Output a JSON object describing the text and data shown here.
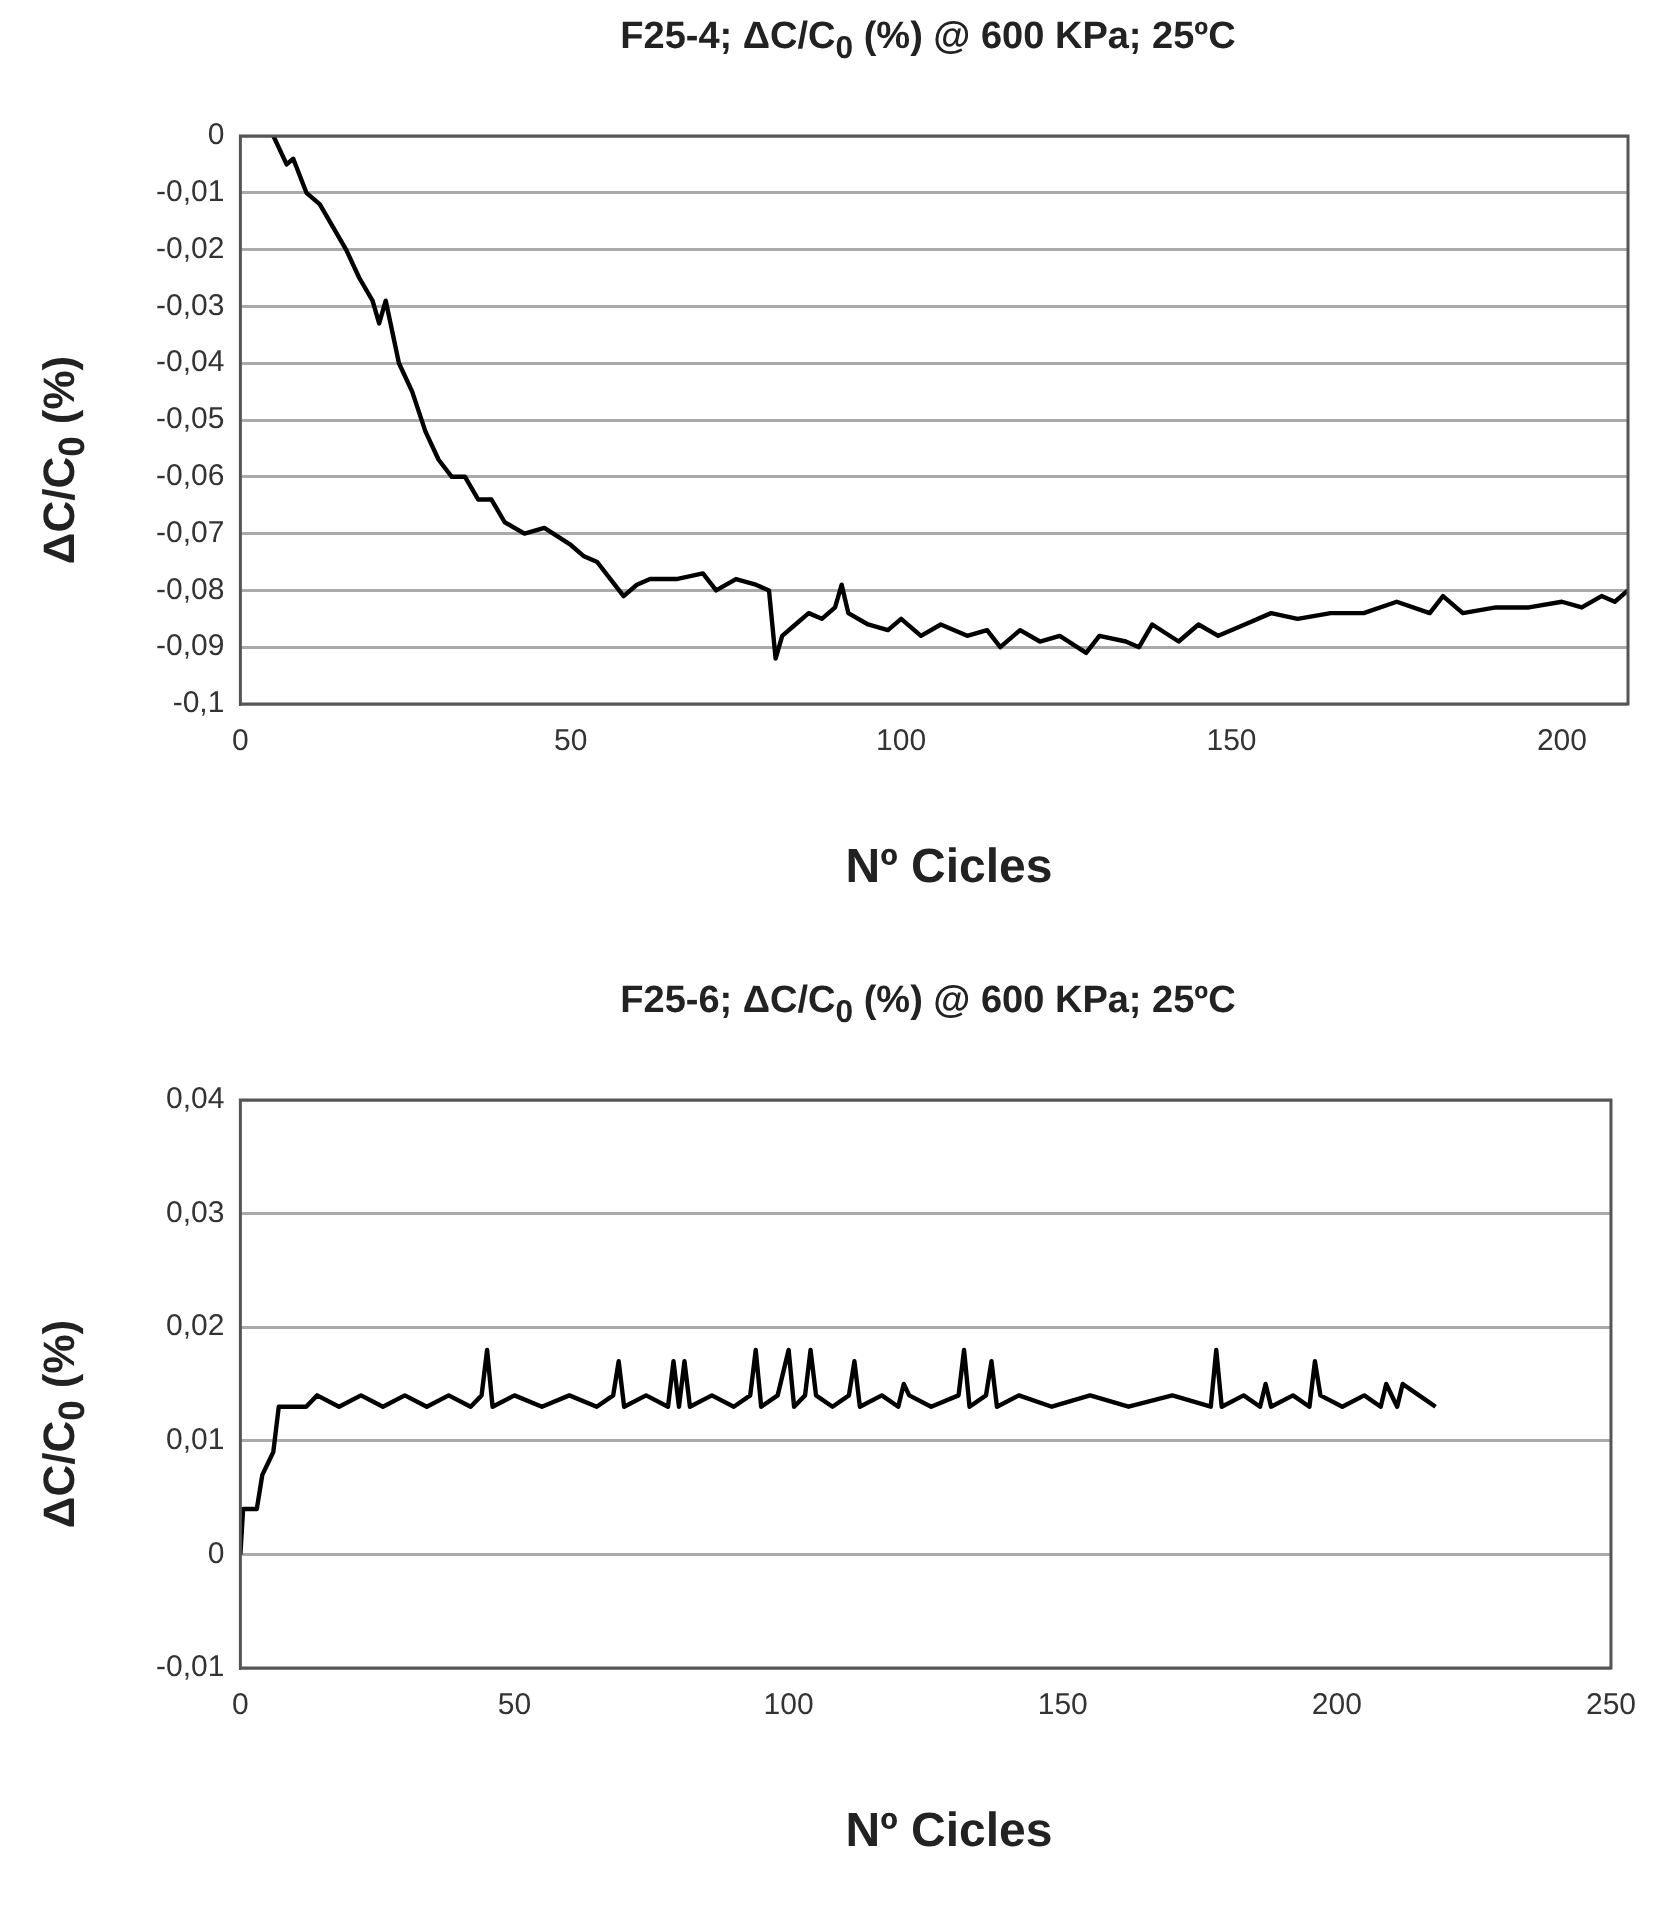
{
  "chart_data": [
    {
      "type": "line",
      "title": "F25-4; ΔC/C$_{0}$ (%) @ 600 KPa; 25ºC",
      "xlabel": "Nº Cicles",
      "ylabel": "ΔC/C$_{0}$ (%)",
      "color": "#000000",
      "marker": "none",
      "grid": "y",
      "xlim": [
        0,
        210
      ],
      "xticks": [
        0,
        50,
        100,
        150,
        200
      ],
      "ylim": [
        -0.1,
        0
      ],
      "yticks": [
        {
          "value": -0.1,
          "label": "-0,1"
        },
        {
          "value": -0.09,
          "label": "-0,09"
        },
        {
          "value": -0.08,
          "label": "-0,08"
        },
        {
          "value": -0.07,
          "label": "-0,07"
        },
        {
          "value": -0.06,
          "label": "-0,06"
        },
        {
          "value": -0.05,
          "label": "-0,05"
        },
        {
          "value": -0.04,
          "label": "-0,04"
        },
        {
          "value": -0.03,
          "label": "-0,03"
        },
        {
          "value": -0.02,
          "label": "-0,02"
        },
        {
          "value": -0.01,
          "label": "-0,01"
        },
        {
          "value": 0,
          "label": "0"
        }
      ],
      "x": [
        5,
        7,
        8,
        10,
        12,
        14,
        16,
        18,
        20,
        21,
        22,
        24,
        26,
        28,
        30,
        32,
        34,
        36,
        38,
        40,
        43,
        46,
        50,
        52,
        54,
        56,
        58,
        60,
        62,
        66,
        70,
        72,
        75,
        78,
        80,
        81,
        82,
        84,
        86,
        88,
        90,
        91,
        92,
        95,
        98,
        100,
        103,
        106,
        110,
        113,
        115,
        118,
        121,
        124,
        128,
        130,
        134,
        136,
        138,
        142,
        145,
        148,
        152,
        156,
        160,
        165,
        170,
        175,
        180,
        182,
        185,
        190,
        195,
        200,
        203,
        206,
        208,
        210
      ],
      "values": [
        0,
        -0.005,
        -0.004,
        -0.01,
        -0.012,
        -0.016,
        -0.02,
        -0.025,
        -0.029,
        -0.033,
        -0.029,
        -0.04,
        -0.045,
        -0.052,
        -0.057,
        -0.06,
        -0.06,
        -0.064,
        -0.064,
        -0.068,
        -0.07,
        -0.069,
        -0.072,
        -0.074,
        -0.075,
        -0.078,
        -0.081,
        -0.079,
        -0.078,
        -0.078,
        -0.077,
        -0.08,
        -0.078,
        -0.079,
        -0.08,
        -0.092,
        -0.088,
        -0.086,
        -0.084,
        -0.085,
        -0.083,
        -0.079,
        -0.084,
        -0.086,
        -0.087,
        -0.085,
        -0.088,
        -0.086,
        -0.088,
        -0.087,
        -0.09,
        -0.087,
        -0.089,
        -0.088,
        -0.091,
        -0.088,
        -0.089,
        -0.09,
        -0.086,
        -0.089,
        -0.086,
        -0.088,
        -0.086,
        -0.084,
        -0.085,
        -0.084,
        -0.084,
        -0.082,
        -0.084,
        -0.081,
        -0.084,
        -0.083,
        -0.083,
        -0.082,
        -0.083,
        -0.081,
        -0.082,
        -0.08
      ]
    },
    {
      "type": "line",
      "title": "F25-6; ΔC/C$_{0}$ (%) @ 600 KPa; 25ºC",
      "xlabel": "Nº Cicles",
      "ylabel": "ΔC/C$_{0}$ (%)",
      "color": "#000000",
      "marker": "none",
      "grid": "y",
      "xlim": [
        0,
        250
      ],
      "xticks": [
        0,
        50,
        100,
        150,
        200,
        250
      ],
      "ylim": [
        -0.01,
        0.04
      ],
      "yticks": [
        {
          "value": -0.01,
          "label": "-0,01"
        },
        {
          "value": 0,
          "label": "0"
        },
        {
          "value": 0.01,
          "label": "0,01"
        },
        {
          "value": 0.02,
          "label": "0,02"
        },
        {
          "value": 0.03,
          "label": "0,03"
        },
        {
          "value": 0.04,
          "label": "0,04"
        }
      ],
      "x": [
        0,
        0.5,
        3,
        4,
        5,
        6,
        7,
        12,
        14,
        18,
        22,
        26,
        30,
        34,
        38,
        42,
        44,
        45,
        46,
        50,
        55,
        60,
        65,
        68,
        69,
        70,
        74,
        78,
        79,
        80,
        81,
        82,
        86,
        90,
        93,
        94,
        95,
        98,
        100,
        101,
        103,
        104,
        105,
        108,
        111,
        112,
        113,
        117,
        120,
        121,
        122,
        126,
        131,
        132,
        133,
        136,
        137,
        138,
        142,
        148,
        155,
        162,
        170,
        177,
        178,
        179,
        183,
        186,
        187,
        188,
        192,
        195,
        196,
        197,
        201,
        205,
        208,
        209,
        211,
        212,
        215,
        218
      ],
      "values": [
        0,
        0.004,
        0.004,
        0.007,
        0.008,
        0.009,
        0.013,
        0.013,
        0.014,
        0.013,
        0.014,
        0.013,
        0.014,
        0.013,
        0.014,
        0.013,
        0.014,
        0.018,
        0.013,
        0.014,
        0.013,
        0.014,
        0.013,
        0.014,
        0.017,
        0.013,
        0.014,
        0.013,
        0.017,
        0.013,
        0.017,
        0.013,
        0.014,
        0.013,
        0.014,
        0.018,
        0.013,
        0.014,
        0.018,
        0.013,
        0.014,
        0.018,
        0.014,
        0.013,
        0.014,
        0.017,
        0.013,
        0.014,
        0.013,
        0.015,
        0.014,
        0.013,
        0.014,
        0.018,
        0.013,
        0.014,
        0.017,
        0.013,
        0.014,
        0.013,
        0.014,
        0.013,
        0.014,
        0.013,
        0.018,
        0.013,
        0.014,
        0.013,
        0.015,
        0.013,
        0.014,
        0.013,
        0.017,
        0.014,
        0.013,
        0.014,
        0.013,
        0.015,
        0.013,
        0.015,
        0.014,
        0.013
      ]
    }
  ]
}
